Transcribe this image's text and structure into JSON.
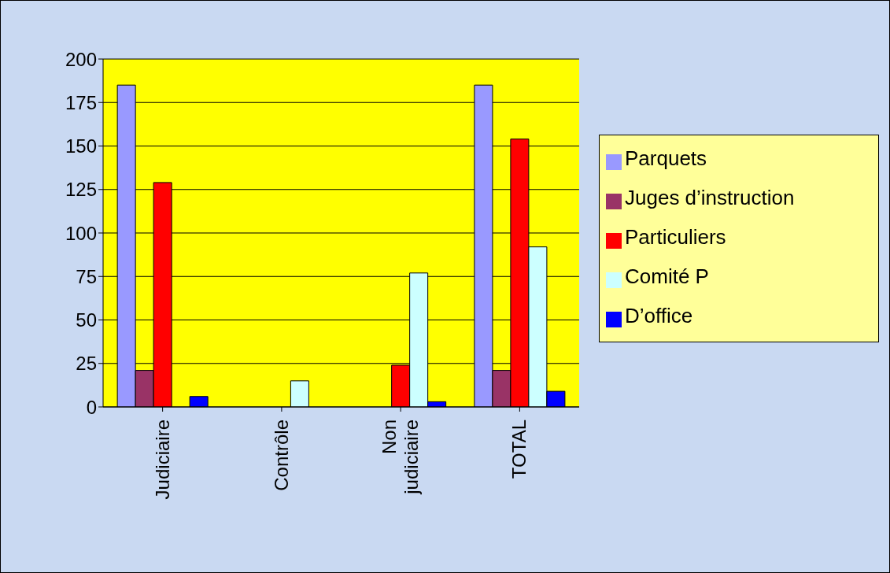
{
  "chart_data": {
    "type": "bar",
    "categories": [
      "Judiciaire",
      "Contrôle",
      "Non judiciaire",
      "TOTAL"
    ],
    "series": [
      {
        "name": "Parquets",
        "color": "#9999ff",
        "values": [
          185,
          0,
          0,
          185
        ]
      },
      {
        "name": "Juges d’instruction",
        "color": "#993366",
        "values": [
          21,
          0,
          0,
          21
        ]
      },
      {
        "name": "Particuliers",
        "color": "#ff0000",
        "values": [
          129,
          0,
          24,
          154
        ]
      },
      {
        "name": "Comité P",
        "color": "#ccffff",
        "values": [
          0,
          15,
          77,
          92
        ]
      },
      {
        "name": "D’office",
        "color": "#0000ff",
        "values": [
          6,
          0,
          3,
          9
        ]
      }
    ],
    "ylim": [
      0,
      200
    ],
    "yticks": [
      0,
      25,
      50,
      75,
      100,
      125,
      150,
      175,
      200
    ],
    "grid": "y",
    "legend": "right"
  }
}
